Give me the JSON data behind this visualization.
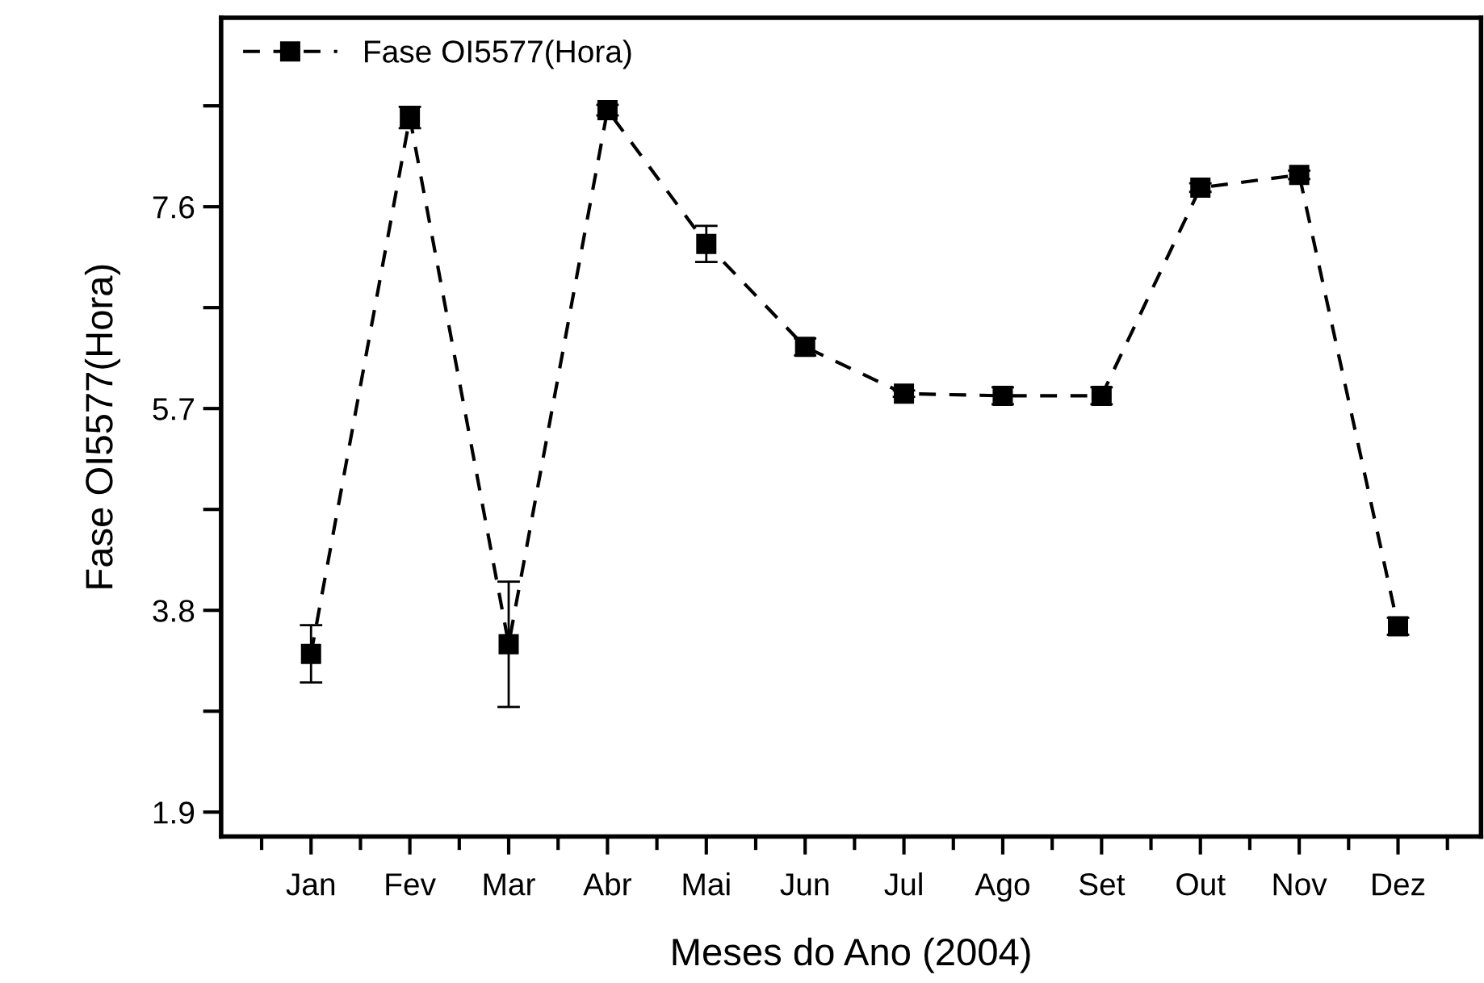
{
  "chart_data": {
    "type": "line",
    "xlabel": "Meses do Ano (2004)",
    "ylabel": "Fase OI5577(Hora)",
    "categories": [
      "Jan",
      "Fev",
      "Mar",
      "Abr",
      "Mai",
      "Jun",
      "Jul",
      "Ago",
      "Set",
      "Out",
      "Nov",
      "Dez"
    ],
    "series": [
      {
        "name": "Fase OI5577(Hora)",
        "color": "#000000",
        "values": [
          3.39,
          8.44,
          3.48,
          8.51,
          7.25,
          6.28,
          5.84,
          5.82,
          5.82,
          7.78,
          7.9,
          3.65
        ],
        "errors": [
          0.27,
          0.1,
          0.59,
          0.05,
          0.17,
          0.08,
          0.03,
          0.08,
          0.08,
          0.04,
          0.04,
          0.08
        ]
      }
    ],
    "ylim": [
      1.67,
      9.38
    ],
    "yticks": [
      1.9,
      {
        "value": 2.85,
        "label": null
      },
      3.8,
      {
        "value": 4.75,
        "label": null
      },
      5.7,
      {
        "value": 6.65,
        "label": null
      },
      7.6,
      {
        "value": 8.55,
        "label": null
      }
    ],
    "marker": "square",
    "line_style": "dashed",
    "legend": "top left",
    "grid": false
  }
}
